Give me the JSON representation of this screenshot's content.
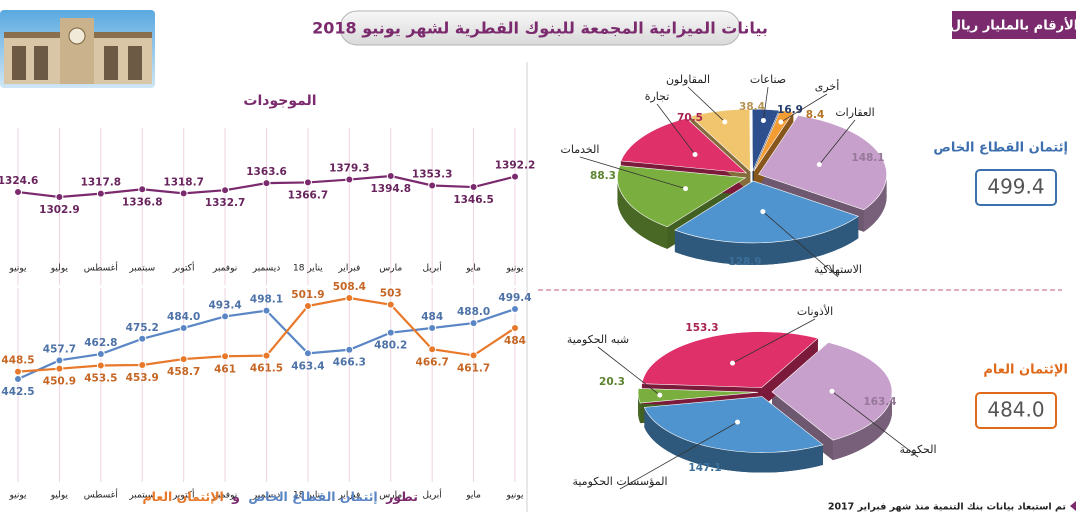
{
  "header": {
    "title": "بيانات الميزانية المجمعة للبنوك القطرية لشهر يونيو 2018",
    "unit_note": "الأرقام بالمليار ريال"
  },
  "footer": {
    "note": "تم استبعاد بيانات بنك التنمية منذ شهر فبراير 2017"
  },
  "chart_data": [
    {
      "type": "line",
      "title": "الموجودات",
      "categories": [
        "يونيو",
        "يوليو",
        "أغسطس",
        "سبتمبر",
        "أكتوبر",
        "نوفمبر",
        "ديسمبر",
        "يناير 18",
        "فبراير",
        "مارس",
        "أبريل",
        "مايو",
        "يونيو"
      ],
      "series": [
        {
          "color": "#7b2a6e",
          "values": [
            1324.6,
            1302.9,
            1317.8,
            1336.8,
            1318.7,
            1332.7,
            1363.6,
            1366.7,
            1379.3,
            1394.8,
            1353.3,
            1346.5,
            1392.2
          ]
        }
      ]
    },
    {
      "type": "line",
      "title": "تطور",
      "title_and": "و",
      "categories": [
        "يونيو",
        "يوليو",
        "أغسطس",
        "سبتمبر",
        "أكتوبر",
        "نوفمبر",
        "ديسمبر",
        "يناير 18",
        "فبراير",
        "مارس",
        "أبريل",
        "مايو",
        "يونيو"
      ],
      "series": [
        {
          "name": "إئتمان القطاع الخاص",
          "color": "#5b86c5",
          "values": [
            442.5,
            457.7,
            462.8,
            475.2,
            484.0,
            493.4,
            498.1,
            463.4,
            466.3,
            480.2,
            484,
            488.0,
            499.4
          ],
          "value_labels": [
            "442.5",
            "457.7",
            "462.8",
            "475.2",
            "484.0",
            "493.4",
            "498.1",
            "463.4",
            "466.3",
            "480.2",
            "484",
            "488.0",
            "499.4"
          ]
        },
        {
          "name": "الإئتمان العام",
          "color": "#e8782a",
          "values": [
            448.5,
            450.9,
            453.5,
            453.9,
            458.7,
            461,
            461.5,
            501.9,
            508.4,
            503,
            466.7,
            461.7,
            484
          ],
          "value_labels": [
            "448.5",
            "450.9",
            "453.5",
            "453.9",
            "458.7",
            "461",
            "461.5",
            "501.9",
            "508.4",
            "503",
            "466.7",
            "461.7",
            "484"
          ]
        }
      ]
    },
    {
      "type": "pie",
      "title": "إئتمان القطاع الخاص",
      "total": "499.4",
      "title_color": "#3d6fae",
      "categories": [
        "العقارات",
        "الاستهلاكية",
        "الخدمات",
        "تجارة",
        "المقاولون",
        "صناعات",
        "أخرى"
      ],
      "values": [
        148.1,
        128.9,
        88.3,
        70.5,
        38.4,
        16.9,
        8.4
      ],
      "colors": [
        "#c8a0cc",
        "#4f94cf",
        "#7aae3f",
        "#e0306a",
        "#f1c56e",
        "#2d4f8e",
        "#f39c33"
      ]
    },
    {
      "type": "pie",
      "title": "الإئتمان العام",
      "total": "484.0",
      "title_color": "#e06a1b",
      "categories": [
        "الحكومة",
        "المؤسسات الحكومية",
        "شبه الحكومية",
        "الأذونات"
      ],
      "values": [
        163.4,
        147.1,
        20.3,
        153.3
      ],
      "colors": [
        "#c8a0cc",
        "#4f94cf",
        "#7aae3f",
        "#e0306a"
      ]
    }
  ]
}
